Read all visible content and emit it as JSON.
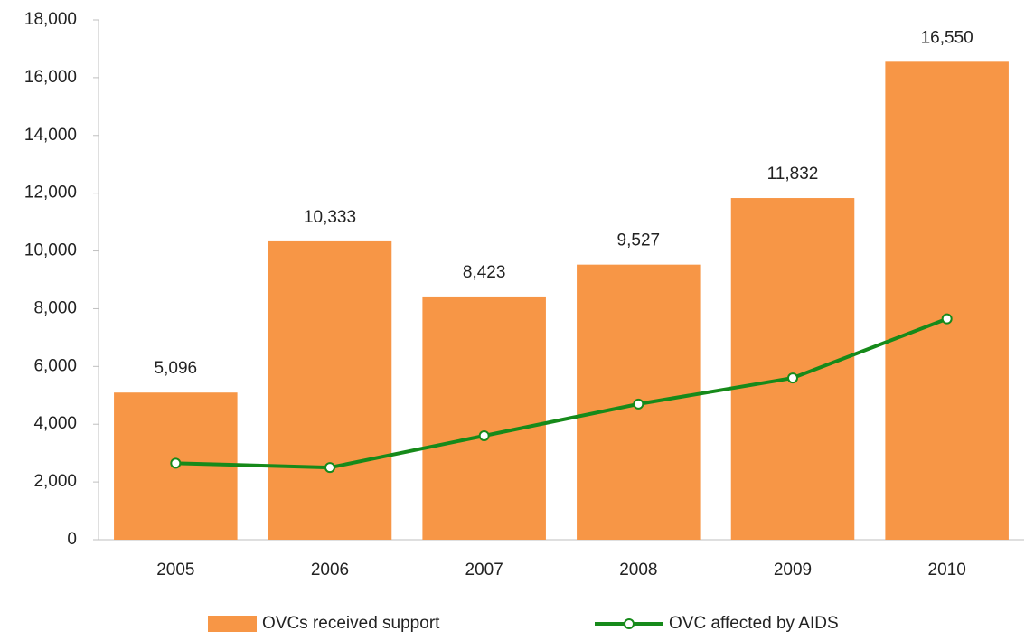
{
  "chart_data": {
    "type": "bar",
    "categories": [
      "2005",
      "2006",
      "2007",
      "2008",
      "2009",
      "2010"
    ],
    "series": [
      {
        "name": "OVCs received support",
        "type": "bar",
        "color": "#f79646",
        "values": [
          5096,
          10333,
          8423,
          9527,
          11832,
          16550
        ],
        "value_labels": [
          "5,096",
          "10,333",
          "8,423",
          "9,527",
          "11,832",
          "16,550"
        ]
      },
      {
        "name": "OVC affected by AIDS",
        "type": "line",
        "color": "#168a1a",
        "values": [
          2650,
          2500,
          3600,
          4700,
          5600,
          7650
        ]
      }
    ],
    "ylim": [
      0,
      18000
    ],
    "yticks": [
      0,
      {
        "value": 2000,
        "label": "2,000"
      },
      {
        "value": 4000,
        "label": "4,000"
      },
      {
        "value": 6000,
        "label": "6,000"
      },
      {
        "value": 8000,
        "label": "8,000"
      },
      {
        "value": 10000,
        "label": "10,000"
      },
      {
        "value": 12000,
        "label": "12,000"
      },
      {
        "value": 14000,
        "label": "14,000"
      },
      {
        "value": 16000,
        "label": "16,000"
      },
      {
        "value": 18000,
        "label": "18,000"
      }
    ],
    "grid": false,
    "legend": "bottom"
  }
}
